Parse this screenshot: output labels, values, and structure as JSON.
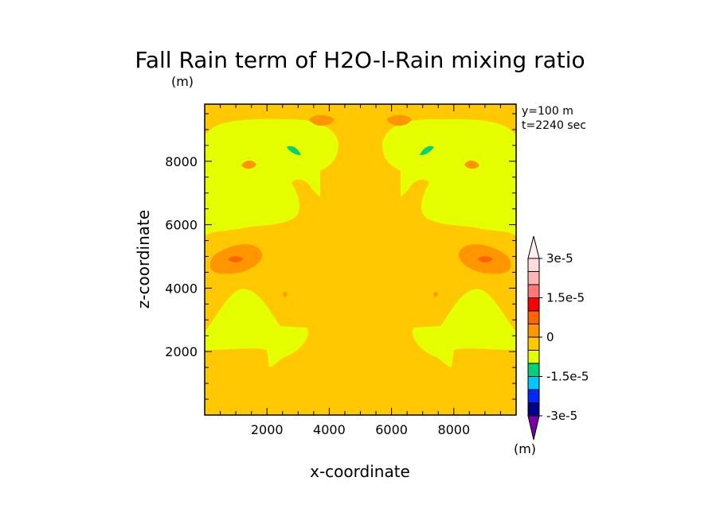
{
  "chart_data": {
    "type": "heatmap",
    "title": "Fall Rain term of H2O-l-Rain mixing ratio",
    "title_units": "(m)",
    "xlabel": "x-coordinate",
    "ylabel": "z-coordinate",
    "annotations": [
      "y=100 m",
      "t=2240 sec"
    ],
    "xlim": [
      0,
      10000
    ],
    "ylim": [
      0,
      9800
    ],
    "x_ticks": [
      2000,
      4000,
      6000,
      8000
    ],
    "y_ticks": [
      2000,
      4000,
      6000,
      8000
    ],
    "x_tick_labels": [
      "2000",
      "4000",
      "6000",
      "8000"
    ],
    "y_tick_labels": [
      "2000",
      "4000",
      "6000",
      "8000"
    ],
    "background_level": "0 to 5e-6",
    "colorbar": {
      "units": "(m)",
      "levels": [
        -3e-05,
        -2.5e-05,
        -2e-05,
        -1.5e-05,
        -1e-05,
        -5e-06,
        0,
        5e-06,
        1e-05,
        1.5e-05,
        2e-05,
        2.5e-05,
        3e-05
      ],
      "colors": [
        "#7a00a8",
        "#00008c",
        "#0028ff",
        "#00c8ff",
        "#00d278",
        "#e6ff00",
        "#ffc800",
        "#ff9600",
        "#ff6400",
        "#ff0000",
        "#ff7878",
        "#ffb4b4",
        "#ffdcdc",
        "#ffeeee"
      ],
      "tick_labels": [
        "3e-5",
        "1.5e-5",
        "0",
        "-1.5e-5",
        "-3e-5"
      ]
    },
    "grid": false,
    "legend": "colorbar right"
  }
}
